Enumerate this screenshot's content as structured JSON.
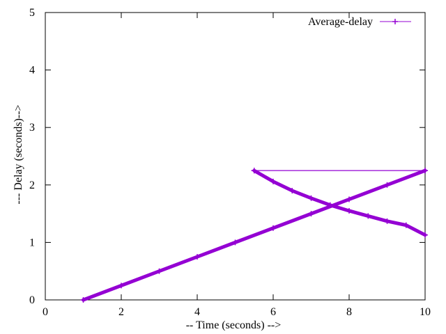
{
  "chart_data": {
    "type": "line",
    "xlabel": "-- Time (seconds) -->",
    "ylabel": "--- Delay (seconds)-->",
    "xlim": [
      0,
      10
    ],
    "ylim": [
      0,
      5
    ],
    "x_ticks": [
      "0",
      "2",
      "4",
      "6",
      "8",
      "10"
    ],
    "y_ticks": [
      "0",
      "1",
      "2",
      "3",
      "4",
      "5"
    ],
    "grid": false,
    "legend_position": "top-right",
    "series": [
      {
        "name": "Average-delay",
        "color": "#9400d3",
        "marker": "plus",
        "segments": [
          {
            "description": "linearly increasing delay",
            "x": [
              1.0,
              2.0,
              3.0,
              4.0,
              5.0,
              6.0,
              7.0,
              8.0,
              9.0,
              10.0
            ],
            "y": [
              0.0,
              0.25,
              0.5,
              0.75,
              1.0,
              1.25,
              1.5,
              1.75,
              2.0,
              2.25
            ]
          },
          {
            "description": "flat average delay",
            "x": [
              5.5,
              10.0
            ],
            "y": [
              2.25,
              2.25
            ]
          },
          {
            "description": "decreasing delay curve",
            "x": [
              5.5,
              6.0,
              6.5,
              7.0,
              7.5,
              8.0,
              8.5,
              9.0,
              9.5,
              10.0
            ],
            "y": [
              2.25,
              2.06,
              1.9,
              1.77,
              1.65,
              1.55,
              1.46,
              1.37,
              1.3,
              1.13
            ]
          }
        ]
      }
    ]
  }
}
